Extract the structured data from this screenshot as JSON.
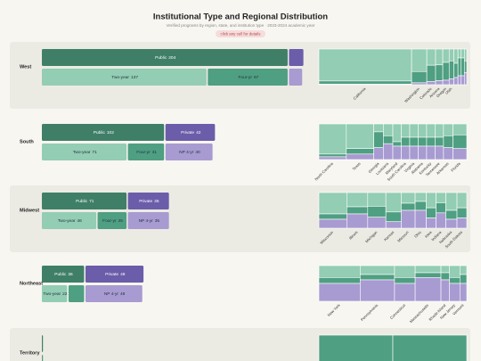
{
  "header": {
    "title": "Institutional Type and Regional Distribution",
    "subtitle": "Verified programs by region, state, and institution type · 2023-2024 academic year",
    "hint": "click any cell for details"
  },
  "colors": {
    "public": "#3f7f68",
    "private": "#6b5da9",
    "two_year": "#93cdb3",
    "four_year": "#4f9f82",
    "np_four_year": "#a89bd1"
  },
  "regions": [
    {
      "name": "West",
      "sector": [
        {
          "label": "Public",
          "value": 204,
          "color": "public"
        },
        {
          "label": null,
          "value": 13,
          "color": "private"
        }
      ],
      "level": [
        {
          "label": "Two-year",
          "value": 137,
          "color": "two_year"
        },
        {
          "label": "Four-yr",
          "value": 67,
          "color": "four_year"
        },
        {
          "label": null,
          "value": 12,
          "color": "np_four_year"
        }
      ],
      "states": [
        {
          "name": "California",
          "values": [
            104,
            10,
            2
          ]
        },
        {
          "name": "Washington",
          "values": [
            12,
            6,
            1
          ]
        },
        {
          "name": "Colorado",
          "values": [
            5,
            5,
            1
          ]
        },
        {
          "name": "Arizona",
          "values": [
            4,
            4,
            1
          ]
        },
        {
          "name": "Oregon",
          "values": [
            3,
            4,
            1
          ]
        },
        {
          "name": "Utah",
          "values": [
            2,
            3,
            1
          ]
        },
        {
          "name": null,
          "values": [
            2,
            2,
            1
          ]
        },
        {
          "name": null,
          "values": [
            1,
            2,
            1
          ]
        },
        {
          "name": null,
          "values": [
            1,
            2,
            1
          ]
        },
        {
          "name": null,
          "values": [
            1,
            1,
            1
          ]
        }
      ]
    },
    {
      "name": "South",
      "sector": [
        {
          "label": "Public",
          "value": 102,
          "color": "public"
        },
        {
          "label": "Private",
          "value": 42,
          "color": "private"
        }
      ],
      "level": [
        {
          "label": "Two-year",
          "value": 71,
          "color": "two_year"
        },
        {
          "label": "Four-yr",
          "value": 31,
          "color": "four_year"
        },
        {
          "label": "NP 4-yr",
          "value": 40,
          "color": "np_four_year"
        }
      ],
      "states": [
        {
          "name": "North Carolina",
          "values": [
            22,
            2,
            2
          ]
        },
        {
          "name": "Texas",
          "values": [
            18,
            4,
            4
          ]
        },
        {
          "name": "Georgia",
          "values": [
            2,
            4,
            3
          ]
        },
        {
          "name": "Louisiana",
          "values": [
            3,
            2,
            4
          ]
        },
        {
          "name": "Maryland",
          "values": [
            4,
            1,
            3
          ]
        },
        {
          "name": "South Carolina",
          "values": [
            3,
            2,
            3
          ]
        },
        {
          "name": "Virginia",
          "values": [
            3,
            2,
            3
          ]
        },
        {
          "name": "Alabama",
          "values": [
            3,
            2,
            3
          ]
        },
        {
          "name": "Kentucky",
          "values": [
            3,
            2,
            3
          ]
        },
        {
          "name": "Tennessee",
          "values": [
            3,
            2,
            3
          ]
        },
        {
          "name": "Arkansas",
          "values": [
            3,
            3,
            3
          ]
        },
        {
          "name": "Florida",
          "values": [
            4,
            5,
            4
          ]
        }
      ]
    },
    {
      "name": "Midwest",
      "sector": [
        {
          "label": "Public",
          "value": 71,
          "color": "public"
        },
        {
          "label": "Private",
          "value": 35,
          "color": "private"
        }
      ],
      "level": [
        {
          "label": "Two-year",
          "value": 46,
          "color": "two_year"
        },
        {
          "label": "Four-yr",
          "value": 25,
          "color": "four_year"
        },
        {
          "label": "NP 4-yr",
          "value": 35,
          "color": "np_four_year"
        }
      ],
      "states": [
        {
          "name": "Wisconsin",
          "values": [
            12,
            3,
            5
          ]
        },
        {
          "name": "Illinois",
          "values": [
            6,
            3,
            6
          ]
        },
        {
          "name": "Michigan",
          "values": [
            5,
            4,
            4
          ]
        },
        {
          "name": "Kansas",
          "values": [
            6,
            3,
            2
          ]
        },
        {
          "name": "Missouri",
          "values": [
            3,
            2,
            5
          ]
        },
        {
          "name": "Ohio",
          "values": [
            2,
            2,
            4
          ]
        },
        {
          "name": "Iowa",
          "values": [
            3,
            2,
            2
          ]
        },
        {
          "name": "Indiana",
          "values": [
            2,
            2,
            3
          ]
        },
        {
          "name": "Nebraska",
          "values": [
            4,
            2,
            2
          ]
        },
        {
          "name": "South Dakota",
          "values": [
            3,
            2,
            2
          ]
        }
      ]
    },
    {
      "name": "Northeast",
      "sector": [
        {
          "label": "Public",
          "value": 36,
          "color": "public"
        },
        {
          "label": "Private",
          "value": 49,
          "color": "private"
        }
      ],
      "level": [
        {
          "label": "Two-year",
          "value": 22,
          "color": "two_year"
        },
        {
          "label": null,
          "value": 14,
          "color": "four_year"
        },
        {
          "label": "NP 4-yr",
          "value": 48,
          "color": "np_four_year"
        }
      ],
      "states": [
        {
          "name": "New York",
          "values": [
            8,
            4,
            12
          ]
        },
        {
          "name": "Pennsylvania",
          "values": [
            5,
            3,
            12
          ]
        },
        {
          "name": "Connecticut",
          "values": [
            4,
            2,
            6
          ]
        },
        {
          "name": "Massachusetts",
          "values": [
            3,
            2,
            10
          ]
        },
        {
          "name": "Rhode Island",
          "values": [
            1,
            1,
            3
          ]
        },
        {
          "name": "New Jersey",
          "values": [
            2,
            1,
            3
          ]
        },
        {
          "name": "Vermont",
          "values": [
            1,
            1,
            2
          ]
        }
      ]
    },
    {
      "name": "Territory",
      "sector": [
        {
          "label": null,
          "value": 2,
          "color": "public"
        }
      ],
      "level": [
        {
          "label": null,
          "value": 2,
          "color": "four_year"
        }
      ],
      "states": [
        {
          "name": null,
          "values": [
            0,
            1,
            0
          ]
        },
        {
          "name": null,
          "values": [
            0,
            1,
            0
          ]
        }
      ]
    }
  ]
}
